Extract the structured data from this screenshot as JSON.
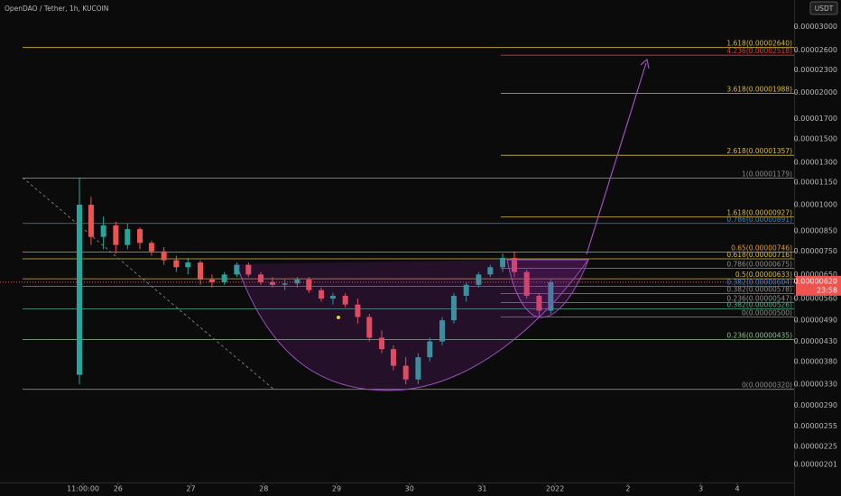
{
  "chart_data": {
    "type": "candlestick",
    "title": "OpenDAO / Tether, 1h, KUCOIN",
    "currency_button": "USDT",
    "log_scale": true,
    "up_color": "#26a69a",
    "down_color": "#ef5350",
    "x": [
      0.47,
      0.63,
      0.8,
      0.97,
      1.13,
      1.3,
      1.46,
      1.63,
      1.8,
      1.96,
      2.13,
      2.29,
      2.46,
      2.63,
      2.79,
      2.96,
      3.12,
      3.29,
      3.46,
      3.62,
      3.79,
      3.95,
      4.12,
      4.29,
      4.45,
      4.62,
      4.78,
      4.95,
      5.12,
      5.28,
      5.45,
      5.61,
      5.78,
      5.95,
      6.11,
      6.28,
      6.44,
      6.61,
      6.78,
      6.94
    ],
    "open": [
      3.5e-06,
      1e-05,
      8.2e-06,
      8.8e-06,
      7.8e-06,
      8.6e-06,
      7.9e-06,
      7.5e-06,
      7.1e-06,
      6.8e-06,
      7e-06,
      6.3e-06,
      6.2e-06,
      6.5e-06,
      6.9e-06,
      6.5e-06,
      6.2e-06,
      6.1e-06,
      6.15e-06,
      6.3e-06,
      5.9e-06,
      5.6e-06,
      5.7e-06,
      5.4e-06,
      5e-06,
      4.4e-06,
      4.1e-06,
      3.7e-06,
      3.4e-06,
      3.9e-06,
      4.3e-06,
      4.9e-06,
      5.7e-06,
      6.1e-06,
      6.5e-06,
      6.8e-06,
      7.2e-06,
      6.6e-06,
      5.7e-06,
      5.2e-06
    ],
    "high": [
      1.18e-05,
      1.05e-05,
      9.3e-06,
      9e-06,
      8.9e-06,
      8.7e-06,
      8e-06,
      7.7e-06,
      7.3e-06,
      7.2e-06,
      7.1e-06,
      6.5e-06,
      6.6e-06,
      7e-06,
      7e-06,
      6.6e-06,
      6.4e-06,
      6.3e-06,
      6.4e-06,
      6.4e-06,
      6e-06,
      5.8e-06,
      5.8e-06,
      5.6e-06,
      5.1e-06,
      4.6e-06,
      4.2e-06,
      3.9e-06,
      4e-06,
      4.4e-06,
      5e-06,
      5.8e-06,
      6.2e-06,
      6.6e-06,
      6.9e-06,
      7.4e-06,
      7.5e-06,
      6.7e-06,
      5.8e-06,
      6.3e-06
    ],
    "low": [
      3.3e-06,
      7.8e-06,
      7.6e-06,
      7.4e-06,
      7.6e-06,
      7.6e-06,
      7.3e-06,
      6.9e-06,
      6.6e-06,
      6.5e-06,
      6.1e-06,
      6e-06,
      6.1e-06,
      6.4e-06,
      6.4e-06,
      6.1e-06,
      6e-06,
      5.9e-06,
      6e-06,
      5.8e-06,
      5.5e-06,
      5.4e-06,
      5.3e-06,
      4.8e-06,
      4.3e-06,
      4e-06,
      3.6e-06,
      3.3e-06,
      3.3e-06,
      3.8e-06,
      4.2e-06,
      4.8e-06,
      5.5e-06,
      6e-06,
      6.4e-06,
      6.6e-06,
      6.4e-06,
      5.6e-06,
      5e-06,
      5.1e-06
    ],
    "close": [
      1e-05,
      8.2e-06,
      8.8e-06,
      7.8e-06,
      8.6e-06,
      7.9e-06,
      7.5e-06,
      7.1e-06,
      6.8e-06,
      7e-06,
      6.3e-06,
      6.2e-06,
      6.5e-06,
      6.9e-06,
      6.5e-06,
      6.2e-06,
      6.1e-06,
      6.15e-06,
      6.3e-06,
      5.9e-06,
      5.6e-06,
      5.7e-06,
      5.4e-06,
      5e-06,
      4.4e-06,
      4.1e-06,
      3.7e-06,
      3.4e-06,
      3.9e-06,
      4.3e-06,
      4.9e-06,
      5.7e-06,
      6.1e-06,
      6.5e-06,
      6.8e-06,
      7.2e-06,
      6.6e-06,
      5.7e-06,
      5.2e-06,
      6.2e-06
    ],
    "xlim": [
      -0.62,
      10.28
    ],
    "xticks": [
      {
        "value": 0.52,
        "label": "11:00:00"
      },
      {
        "value": 1,
        "label": "26"
      },
      {
        "value": 2,
        "label": "27"
      },
      {
        "value": 3,
        "label": "28"
      },
      {
        "value": 4,
        "label": "29"
      },
      {
        "value": 5,
        "label": "30"
      },
      {
        "value": 6,
        "label": "31"
      },
      {
        "value": 7,
        "label": "2022"
      },
      {
        "value": 8,
        "label": "2"
      },
      {
        "value": 9,
        "label": "3"
      },
      {
        "value": 9.5,
        "label": "4"
      }
    ],
    "ylim": [
      1.8e-06,
      3.54e-05
    ],
    "yticks": [
      {
        "value": 3e-05,
        "label": "0.00003000"
      },
      {
        "value": 2.6e-05,
        "label": "0.00002600"
      },
      {
        "value": 2.3e-05,
        "label": "0.00002300"
      },
      {
        "value": 2e-05,
        "label": "0.00002000"
      },
      {
        "value": 1.7e-05,
        "label": "0.00001700"
      },
      {
        "value": 1.5e-05,
        "label": "0.00001500"
      },
      {
        "value": 1.3e-05,
        "label": "0.00001300"
      },
      {
        "value": 1.15e-05,
        "label": "0.00001150"
      },
      {
        "value": 1e-05,
        "label": "0.00001000"
      },
      {
        "value": 8.5e-06,
        "label": "0.00000850"
      },
      {
        "value": 7.5e-06,
        "label": "0.00000750"
      },
      {
        "value": 6.5e-06,
        "label": "0.00000650"
      },
      {
        "value": 5.6e-06,
        "label": "0.00000560"
      },
      {
        "value": 4.9e-06,
        "label": "0.00000490"
      },
      {
        "value": 4.3e-06,
        "label": "0.00000430"
      },
      {
        "value": 3.8e-06,
        "label": "0.00000380"
      },
      {
        "value": 3.3e-06,
        "label": "0.00000330"
      },
      {
        "value": 2.9e-06,
        "label": "0.00000290"
      },
      {
        "value": 2.55e-06,
        "label": "0.00000255"
      },
      {
        "value": 2.25e-06,
        "label": "0.00000225"
      },
      {
        "value": 2.01e-06,
        "label": "0.00000201"
      }
    ],
    "last_price": {
      "value": 6.2e-06,
      "label": "0.00000620",
      "countdown": "23:58",
      "color": "#ef5350"
    },
    "fib_levels_main": [
      {
        "label": "1.618(0.00002640)",
        "value": 2.64e-05,
        "color": "#d4b83a"
      },
      {
        "label": "1(0.00001179)",
        "value": 1.179e-05,
        "color": "#8a8a8a"
      },
      {
        "label": "0.786(0.00000891)",
        "value": 8.91e-06,
        "color": "#3d7fc4"
      },
      {
        "label": "0.65(0.00000746)",
        "value": 7.46e-06,
        "color": "#e69a28"
      },
      {
        "label": "0.618(0.00000716)",
        "value": 7.16e-06,
        "color": "#d4b83a"
      },
      {
        "label": "0.5(0.00000633)",
        "value": 6.33e-06,
        "color": "#d4b83a"
      },
      {
        "label": "0.382(0.00000604)",
        "value": 6.04e-06,
        "color": "#3d7fc4"
      },
      {
        "label": "0.382(0.00000526)",
        "value": 5.26e-06,
        "color": "#4caf86"
      },
      {
        "label": "0.236(0.00000435)",
        "value": 4.35e-06,
        "color": "#8fbf8f"
      },
      {
        "label": "0(0.00000320)",
        "value": 3.2e-06,
        "color": "#8a8a8a"
      }
    ],
    "fib_levels_projection": [
      {
        "label": "4.236(0.00002518)",
        "value": 2.518e-05,
        "color": "#d83a3a"
      },
      {
        "label": "3.618(0.00001988)",
        "value": 1.988e-05,
        "color": "#d4b83a"
      },
      {
        "label": "2.618(0.00001357)",
        "value": 1.357e-05,
        "color": "#d4b83a"
      },
      {
        "label": "1.618(0.00000927)",
        "value": 9.27e-06,
        "color": "#d4b83a"
      },
      {
        "label": "0.786(0.00000675)",
        "value": 6.75e-06,
        "color": "#8a8a8a"
      },
      {
        "label": "0.382(0.00000578)",
        "value": 5.78e-06,
        "color": "#8a8a8a"
      },
      {
        "label": "0.236(0.00000547)",
        "value": 5.47e-06,
        "color": "#8a8a8a"
      },
      {
        "label": "0(0.00000500)",
        "value": 5e-06,
        "color": "#8a8a8a"
      }
    ]
  }
}
